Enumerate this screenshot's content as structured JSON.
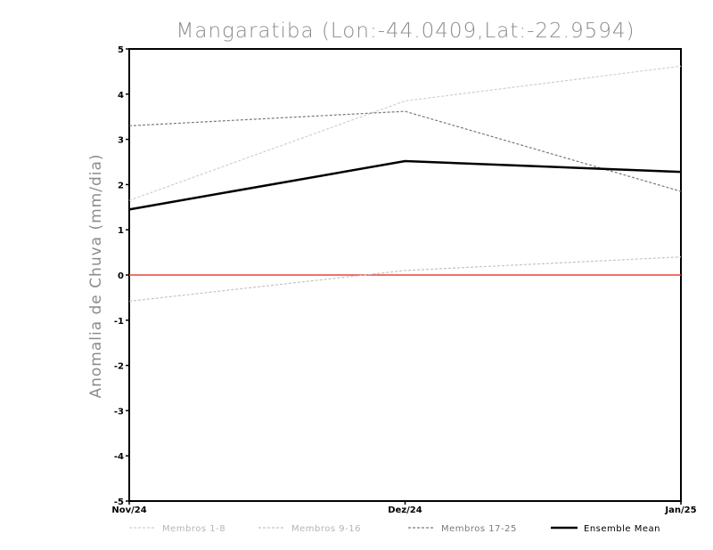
{
  "chart_data": {
    "type": "line",
    "title": "Mangaratiba (Lon:-44.0409,Lat:-22.9594)",
    "ylabel": "Anomalia de Chuva (mm/dia)",
    "xlabel": "",
    "categories": [
      "Nov/24",
      "Dez/24",
      "Jan/25"
    ],
    "ylim": [
      -5,
      5
    ],
    "yticks": [
      -5,
      -4,
      -3,
      -2,
      -1,
      0,
      1,
      2,
      3,
      4,
      5
    ],
    "reference_line": {
      "y": 0,
      "color": "#e8443a"
    },
    "grid": false,
    "legend_placement": "bottom",
    "series": [
      {
        "name": "Membros 1-8",
        "values": [
          1.65,
          3.85,
          4.62
        ],
        "color": "#cfcfcf",
        "style": "dashed"
      },
      {
        "name": "Membros 9-16",
        "values": [
          -0.58,
          0.1,
          0.4
        ],
        "color": "#c4c4c4",
        "style": "dashed"
      },
      {
        "name": "Membros 17-25",
        "values": [
          3.3,
          3.62,
          1.85
        ],
        "color": "#7a7a7a",
        "style": "dashed"
      },
      {
        "name": "Ensemble Mean",
        "values": [
          1.45,
          2.52,
          2.28
        ],
        "color": "#000000",
        "style": "solid"
      }
    ]
  }
}
